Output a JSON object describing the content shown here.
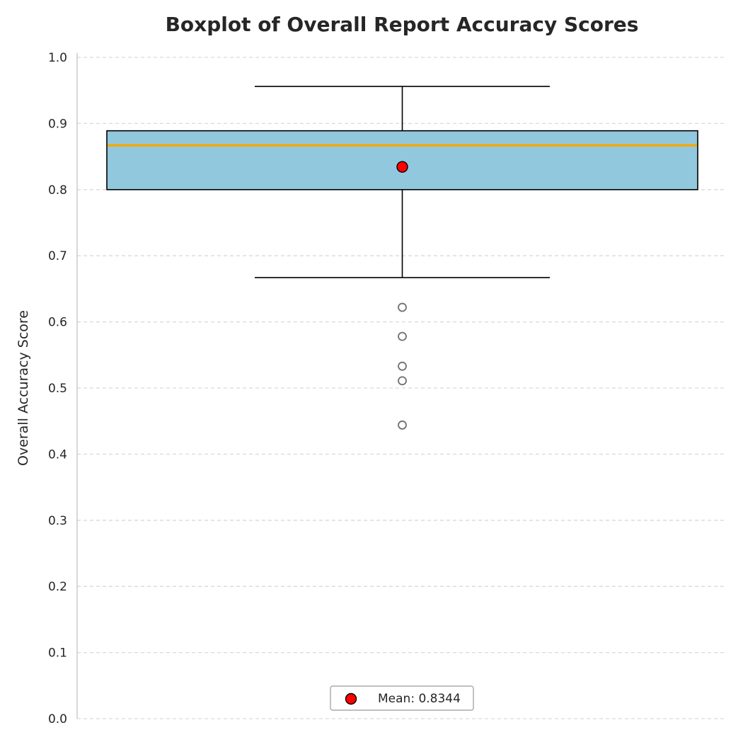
{
  "chart_data": {
    "type": "boxplot",
    "title": "Boxplot of Overall Report Accuracy Scores",
    "xlabel": "",
    "ylabel": "Overall Accuracy Score",
    "ylim": [
      0.0,
      1.0
    ],
    "yticks": [
      0.0,
      0.1,
      0.2,
      0.3,
      0.4,
      0.5,
      0.6,
      0.7,
      0.8,
      0.9,
      1.0
    ],
    "ytick_labels": [
      "0.0",
      "0.1",
      "0.2",
      "0.3",
      "0.4",
      "0.5",
      "0.6",
      "0.7",
      "0.8",
      "0.9",
      "1.0"
    ],
    "grid": "horizontal dashed",
    "box": {
      "whisker_low": 0.667,
      "q1": 0.8,
      "median": 0.867,
      "q3": 0.889,
      "whisker_high": 0.956,
      "mean": 0.8344,
      "outliers": [
        0.622,
        0.578,
        0.533,
        0.511,
        0.444
      ]
    },
    "legend": {
      "label": "Mean: 0.8344",
      "placement": "bottom-center"
    },
    "colors": {
      "box_fill": "#92c8de",
      "median": "#f2a900",
      "mean_marker": "#ff0000",
      "outlier_edge": "#707070",
      "grid": "#d9d9d9"
    }
  }
}
